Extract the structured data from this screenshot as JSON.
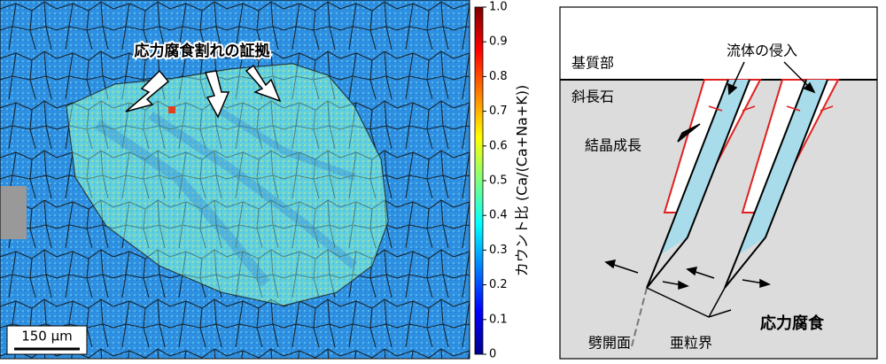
{
  "map_panel": {
    "annotation": "応力腐食割れの証拠",
    "scale_bar": "150 μm",
    "colorbar": {
      "label": "カウント比 (Ca/(Ca+Na+K))",
      "lim": [
        0,
        1
      ],
      "ticks": [
        0,
        0.1,
        0.2,
        0.3,
        0.4,
        0.5,
        0.6,
        0.7,
        0.8,
        0.9,
        {
          "value": 1,
          "label": "1.0"
        }
      ]
    }
  },
  "schematic": {
    "labels": {
      "matrix": "基質部",
      "plagioclase": "斜長石",
      "fluid": "流体の侵入",
      "growth": "結晶成長",
      "cleavage": "劈開面",
      "subgrain": "亜粒界",
      "stress_corrosion": "応力腐食"
    }
  }
}
